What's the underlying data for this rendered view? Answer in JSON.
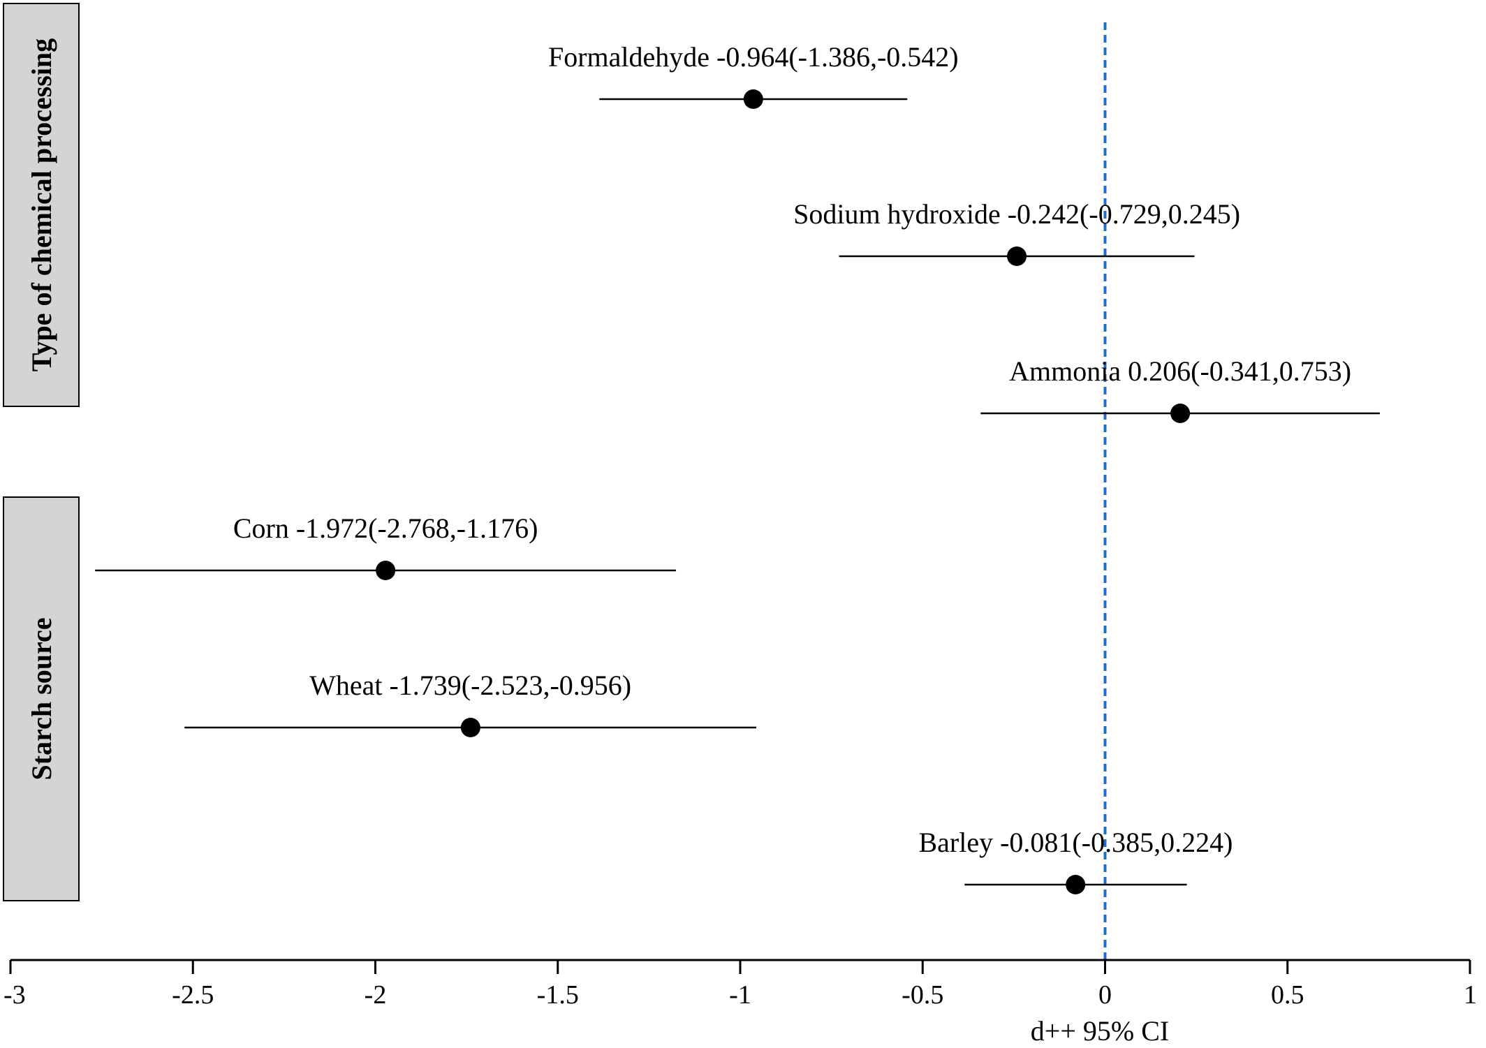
{
  "chart_data": {
    "type": "forest",
    "xlabel": "d++ 95% CI",
    "xlim": [
      -3,
      1
    ],
    "x_ticks": [
      -3,
      -2.5,
      -2,
      -1.5,
      -1,
      -0.5,
      0,
      0.5,
      1
    ],
    "x_tick_labels": [
      "-3",
      "-2.5",
      "-2",
      "-1.5",
      "-1",
      "-0.5",
      "0",
      "0.5",
      "1"
    ],
    "reference_line": {
      "x": 0,
      "style": "dashed",
      "color": "#1f6fc9"
    },
    "groups": [
      {
        "label": "Type of chemical processing",
        "rows": [
          0,
          2
        ]
      },
      {
        "label": "Starch source",
        "rows": [
          3,
          5
        ]
      }
    ],
    "rows": [
      {
        "name": "Formaldehyde",
        "estimate": -0.964,
        "lower": -1.386,
        "upper": -0.542,
        "label": "Formaldehyde -0.964(-1.386,-0.542)"
      },
      {
        "name": "Sodium hydroxide",
        "estimate": -0.242,
        "lower": -0.729,
        "upper": 0.245,
        "label": "Sodium hydroxide -0.242(-0.729,0.245)"
      },
      {
        "name": "Ammonia",
        "estimate": 0.206,
        "lower": -0.341,
        "upper": 0.753,
        "label": "Ammonia 0.206(-0.341,0.753)"
      },
      {
        "name": "Corn",
        "estimate": -1.972,
        "lower": -2.768,
        "upper": -1.176,
        "label": "Corn -1.972(-2.768,-1.176)"
      },
      {
        "name": "Wheat",
        "estimate": -1.739,
        "lower": -2.523,
        "upper": -0.956,
        "label": "Wheat -1.739(-2.523,-0.956)"
      },
      {
        "name": "Barley",
        "estimate": -0.081,
        "lower": -0.385,
        "upper": 0.224,
        "label": "Barley -0.081(-0.385,0.224)"
      }
    ]
  },
  "colors": {
    "marker": "#000000",
    "ci_line": "#000000",
    "axis": "#000000",
    "group_box_fill": "#d4d4d4",
    "reference_line": "#1f6fc9"
  }
}
